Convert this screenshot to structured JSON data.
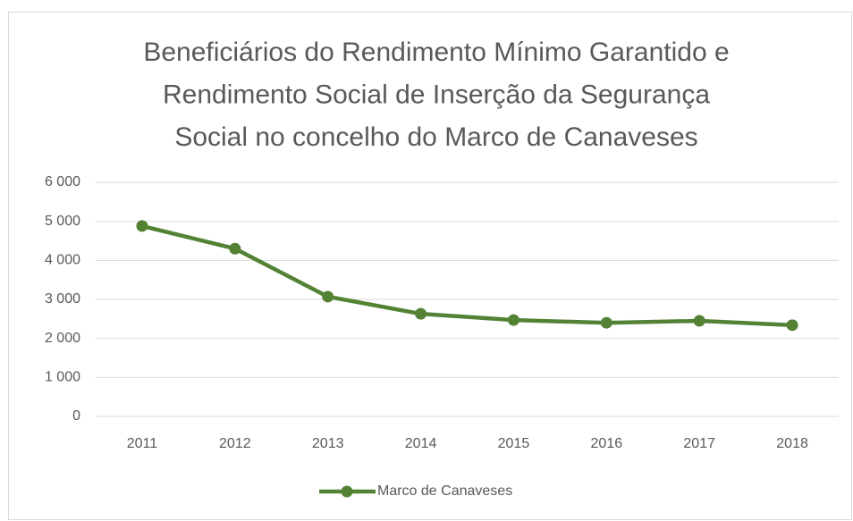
{
  "chart_data": {
    "type": "line",
    "title": [
      "Beneficiários do Rendimento Mínimo Garantido e",
      "Rendimento Social de Inserção da Segurança",
      "Social no concelho do Marco de Canaveses"
    ],
    "categories": [
      "2011",
      "2012",
      "2013",
      "2014",
      "2015",
      "2016",
      "2017",
      "2018"
    ],
    "series": [
      {
        "name": "Marco de Canaveses",
        "color": "#548235",
        "values": [
          4880,
          4300,
          3070,
          2630,
          2470,
          2400,
          2450,
          2340
        ]
      }
    ],
    "ylim": [
      0,
      6000
    ],
    "yticks": [
      0,
      {
        "value": 1000,
        "label": "1 000"
      },
      {
        "value": 2000,
        "label": "2 000"
      },
      {
        "value": 3000,
        "label": "3 000"
      },
      {
        "value": 4000,
        "label": "4 000"
      },
      {
        "value": 5000,
        "label": "5 000"
      },
      {
        "value": 6000,
        "label": "6 000"
      }
    ],
    "grid": true,
    "legend": "bottom"
  }
}
